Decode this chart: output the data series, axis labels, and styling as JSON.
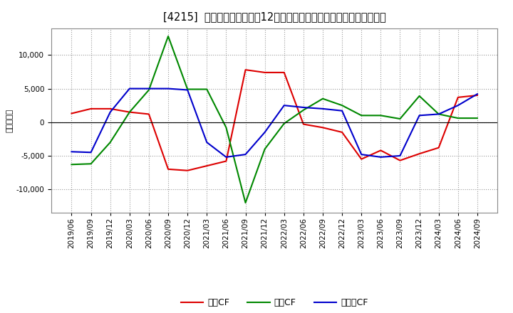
{
  "title": "[4215]  キャッシュフローの12か月移動合計の対前年同期増減額の推移",
  "ylabel": "（百万円）",
  "background_color": "#ffffff",
  "plot_bg_color": "#ffffff",
  "grid_color": "#999999",
  "x_labels": [
    "2019/06",
    "2019/09",
    "2019/12",
    "2020/03",
    "2020/06",
    "2020/09",
    "2020/12",
    "2021/03",
    "2021/06",
    "2021/09",
    "2021/12",
    "2022/03",
    "2022/06",
    "2022/09",
    "2022/12",
    "2023/03",
    "2023/06",
    "2023/09",
    "2023/12",
    "2024/03",
    "2024/06",
    "2024/09"
  ],
  "series": [
    {
      "name": "営業CF",
      "color": "#dd0000",
      "values": [
        1300,
        2000,
        2000,
        1500,
        1200,
        -7000,
        -7200,
        -6500,
        -5800,
        7800,
        7400,
        7400,
        -300,
        -800,
        -1500,
        -5500,
        -4200,
        -5700,
        -4700,
        -3800,
        3700,
        4000
      ]
    },
    {
      "name": "投資CF",
      "color": "#008800",
      "values": [
        -6300,
        -6200,
        -3000,
        1500,
        4800,
        12800,
        4900,
        4900,
        -800,
        -12000,
        -4000,
        -200,
        1800,
        3500,
        2500,
        1000,
        1000,
        500,
        3900,
        1200,
        600,
        600
      ]
    },
    {
      "name": "フリーCF",
      "color": "#0000cc",
      "values": [
        -4400,
        -4500,
        1500,
        5000,
        5000,
        5000,
        4800,
        -3000,
        -5200,
        -4800,
        -1500,
        2500,
        2200,
        2000,
        1700,
        -4800,
        -5200,
        -5000,
        1000,
        1200,
        2500,
        4200
      ]
    }
  ],
  "ylim": [
    -13500,
    14000
  ],
  "yticks": [
    -10000,
    -5000,
    0,
    5000,
    10000
  ],
  "figsize": [
    7.2,
    4.4
  ],
  "dpi": 100,
  "title_fontsize": 10.5,
  "legend_fontsize": 9,
  "tick_fontsize": 7.5,
  "ylabel_fontsize": 8
}
